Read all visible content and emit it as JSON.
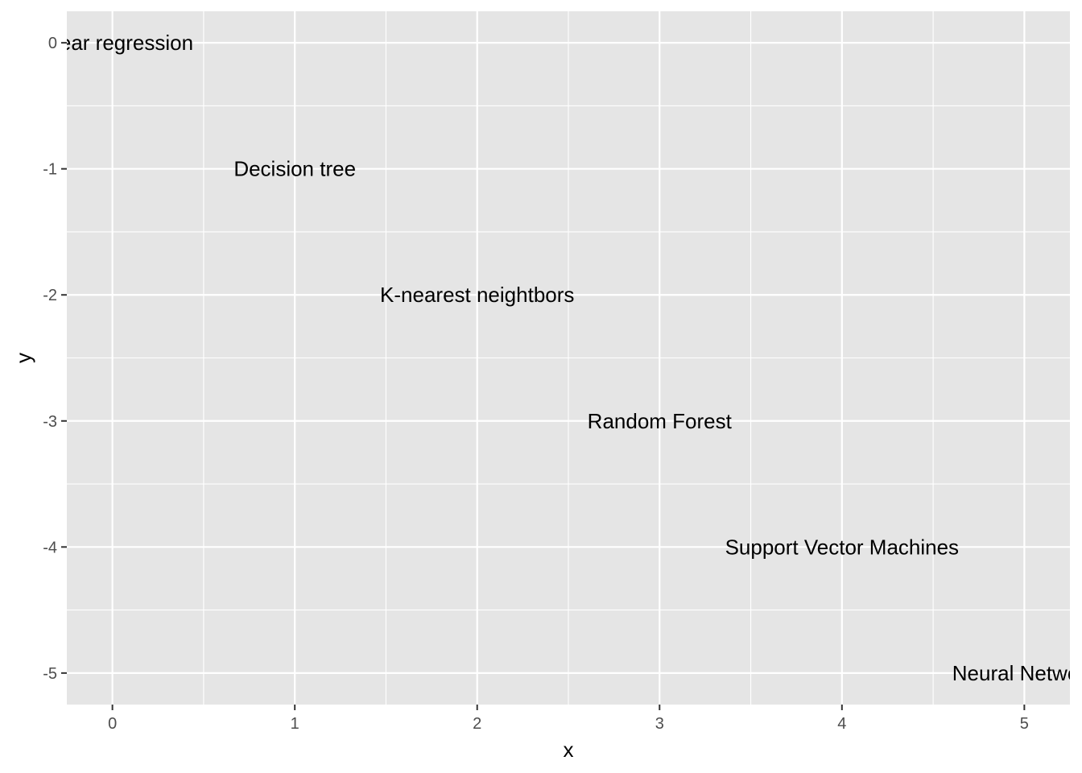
{
  "chart_data": {
    "type": "scatter",
    "mark": "text",
    "x": [
      0,
      1,
      2,
      3,
      4,
      5
    ],
    "y": [
      0,
      -1,
      -2,
      -3,
      -4,
      -5
    ],
    "labels": [
      "Linear regression",
      "Decision tree",
      "K-nearest neightbors",
      "Random Forest",
      "Support Vector Machines",
      "Neural Network"
    ],
    "xlabel": "x",
    "ylabel": "y",
    "xlim": [
      -0.25,
      5.25
    ],
    "ylim": [
      -5.25,
      0.25
    ],
    "x_ticks": [
      0,
      1,
      2,
      3,
      4,
      5
    ],
    "x_tick_labels": [
      "0",
      "1",
      "2",
      "3",
      "4",
      "5"
    ],
    "y_ticks": [
      0,
      -1,
      -2,
      -3,
      -4,
      -5
    ],
    "y_tick_labels": [
      "0",
      "-1",
      "-2",
      "-3",
      "-4",
      "-5"
    ],
    "grid": true,
    "legend": "none",
    "colors": {
      "panel_background": "#e5e5e5",
      "grid_line": "#ffffff",
      "tick_label": "#4d4d4d",
      "tick_mark": "#333333",
      "text": "#000000"
    }
  }
}
